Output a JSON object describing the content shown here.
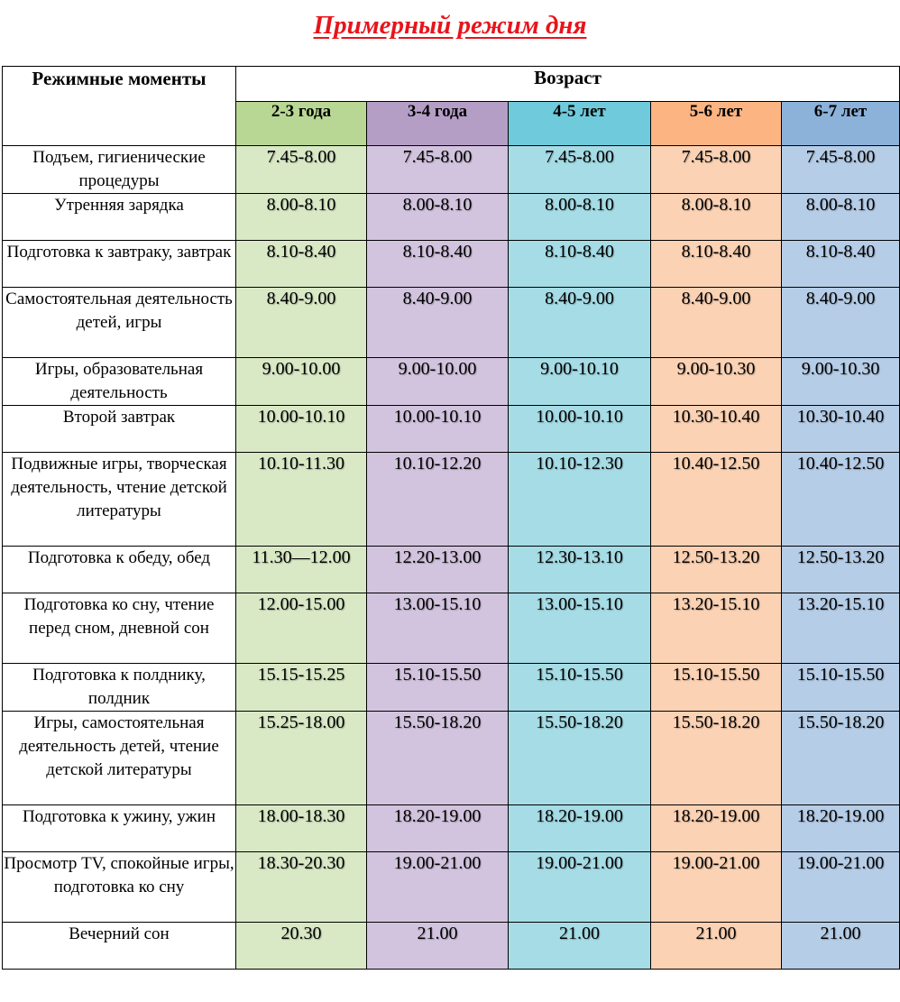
{
  "title": "Примерный режим дня",
  "header": {
    "moments": "Режимные моменты",
    "age": "Возраст",
    "age_groups": [
      "2-3 года",
      "3-4 года",
      "4-5 лет",
      "5-6 лет",
      "6-7 лет"
    ]
  },
  "colors": {
    "title": "#e8141b",
    "group_header": [
      "#b9d794",
      "#b59ec6",
      "#6fcbdc",
      "#fcb483",
      "#8cb2da"
    ],
    "group_cells": [
      "#d9e9c6",
      "#d2c4de",
      "#a6dce6",
      "#fbd2b4",
      "#b6cde7"
    ]
  },
  "rows": [
    {
      "activity": "Подъем, гигиенические процедуры",
      "times": [
        "7.45-8.00",
        "7.45-8.00",
        "7.45-8.00",
        "7.45-8.00",
        "7.45-8.00"
      ]
    },
    {
      "activity": "Утренняя зарядка",
      "times": [
        "8.00-8.10",
        "8.00-8.10",
        "8.00-8.10",
        "8.00-8.10",
        "8.00-8.10"
      ]
    },
    {
      "activity": "Подготовка к завтраку, завтрак",
      "times": [
        "8.10-8.40",
        "8.10-8.40",
        "8.10-8.40",
        "8.10-8.40",
        "8.10-8.40"
      ]
    },
    {
      "activity": "Самостоятельная деятельность детей, игры",
      "times": [
        "8.40-9.00",
        "8.40-9.00",
        "8.40-9.00",
        "8.40-9.00",
        "8.40-9.00"
      ]
    },
    {
      "activity": "Игры, образовательная деятельность",
      "times": [
        "9.00-10.00",
        "9.00-10.00",
        "9.00-10.10",
        "9.00-10.30",
        "9.00-10.30"
      ]
    },
    {
      "activity": "Второй завтрак",
      "times": [
        "10.00-10.10",
        "10.00-10.10",
        "10.00-10.10",
        "10.30-10.40",
        "10.30-10.40"
      ]
    },
    {
      "activity": "Подвижные игры, творческая деятельность, чтение детской литературы",
      "times": [
        "10.10-11.30",
        "10.10-12.20",
        "10.10-12.30",
        "10.40-12.50",
        "10.40-12.50"
      ]
    },
    {
      "activity": "Подготовка к обеду, обед",
      "times": [
        "11.30—12.00",
        "12.20-13.00",
        "12.30-13.10",
        "12.50-13.20",
        "12.50-13.20"
      ]
    },
    {
      "activity": "Подготовка ко сну, чтение перед сном, дневной сон",
      "times": [
        "12.00-15.00",
        "13.00-15.10",
        "13.00-15.10",
        "13.20-15.10",
        "13.20-15.10"
      ]
    },
    {
      "activity": "Подготовка к полднику, полдник",
      "times": [
        "15.15-15.25",
        "15.10-15.50",
        "15.10-15.50",
        "15.10-15.50",
        "15.10-15.50"
      ]
    },
    {
      "activity": "Игры, самостоятельная деятельность детей, чтение детской литературы",
      "times": [
        "15.25-18.00",
        "15.50-18.20",
        "15.50-18.20",
        "15.50-18.20",
        "15.50-18.20"
      ]
    },
    {
      "activity": "Подготовка к ужину, ужин",
      "times": [
        "18.00-18.30",
        "18.20-19.00",
        "18.20-19.00",
        "18.20-19.00",
        "18.20-19.00"
      ]
    },
    {
      "activity": "Просмотр TV, спокойные игры, подготовка ко сну",
      "times": [
        "18.30-20.30",
        "19.00-21.00",
        "19.00-21.00",
        "19.00-21.00",
        "19.00-21.00"
      ]
    },
    {
      "activity": "Вечерний сон",
      "times": [
        "20.30",
        "21.00",
        "21.00",
        "21.00",
        "21.00"
      ]
    }
  ]
}
